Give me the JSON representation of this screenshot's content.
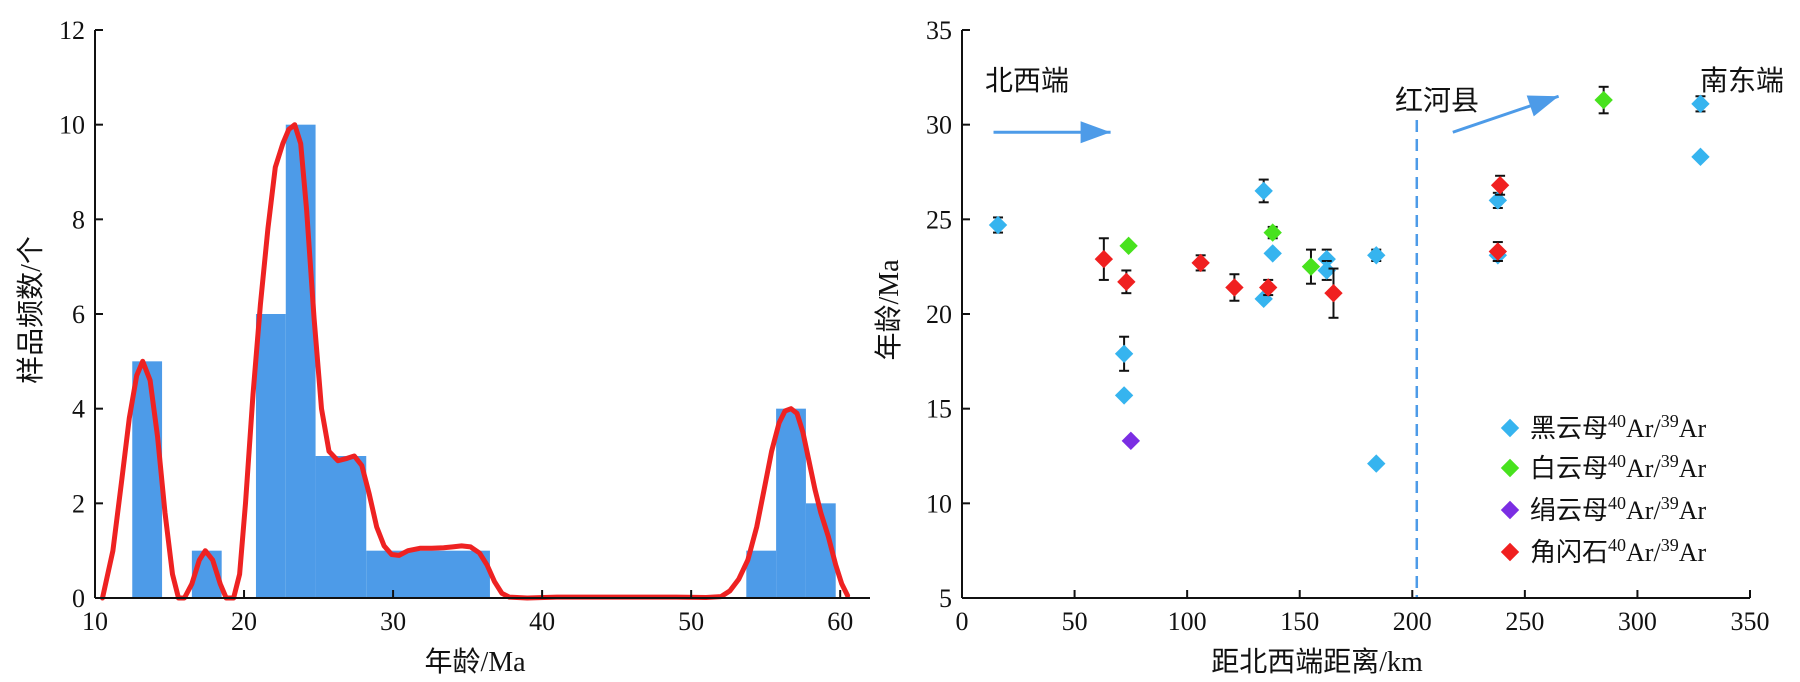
{
  "chart_data": [
    {
      "type": "bar",
      "xlabel": "年龄/Ma",
      "ylabel": "样品频数/个",
      "xlim": [
        10,
        62
      ],
      "ylim": [
        0,
        12
      ],
      "xticks": [
        10,
        20,
        30,
        40,
        50,
        60
      ],
      "yticks": [
        0,
        2,
        4,
        6,
        8,
        10,
        12
      ],
      "bar_color": "#4d9be8",
      "curve_color": "#ee2222",
      "bars": [
        {
          "x0": 12.5,
          "x1": 14.5,
          "value": 5
        },
        {
          "x0": 16.5,
          "x1": 18.5,
          "value": 1
        },
        {
          "x0": 20.8,
          "x1": 22.8,
          "value": 6
        },
        {
          "x0": 22.8,
          "x1": 24.8,
          "value": 10
        },
        {
          "x0": 24.8,
          "x1": 28.2,
          "value": 3
        },
        {
          "x0": 28.2,
          "x1": 36.5,
          "value": 1
        },
        {
          "x0": 53.7,
          "x1": 55.7,
          "value": 1
        },
        {
          "x0": 55.7,
          "x1": 57.7,
          "value": 4
        },
        {
          "x0": 57.7,
          "x1": 59.7,
          "value": 2
        }
      ],
      "curve": [
        [
          10.5,
          0
        ],
        [
          11.2,
          1
        ],
        [
          11.8,
          2.5
        ],
        [
          12.3,
          3.8
        ],
        [
          12.8,
          4.7
        ],
        [
          13.2,
          5
        ],
        [
          13.7,
          4.6
        ],
        [
          14.2,
          3.4
        ],
        [
          14.7,
          1.8
        ],
        [
          15.2,
          0.5
        ],
        [
          15.6,
          0
        ],
        [
          16,
          0
        ],
        [
          16.5,
          0.3
        ],
        [
          17,
          0.8
        ],
        [
          17.4,
          1
        ],
        [
          17.9,
          0.8
        ],
        [
          18.4,
          0.3
        ],
        [
          18.8,
          0
        ],
        [
          19.3,
          0
        ],
        [
          19.7,
          0.5
        ],
        [
          20.1,
          2
        ],
        [
          20.6,
          4.3
        ],
        [
          21.1,
          6.2
        ],
        [
          21.6,
          7.8
        ],
        [
          22.1,
          9.1
        ],
        [
          22.6,
          9.6
        ],
        [
          23,
          9.9
        ],
        [
          23.4,
          10
        ],
        [
          23.8,
          9.6
        ],
        [
          24.2,
          8.2
        ],
        [
          24.7,
          5.9
        ],
        [
          25.2,
          4
        ],
        [
          25.7,
          3.1
        ],
        [
          26.3,
          2.9
        ],
        [
          26.9,
          2.95
        ],
        [
          27.4,
          3
        ],
        [
          27.9,
          2.8
        ],
        [
          28.4,
          2.2
        ],
        [
          28.9,
          1.5
        ],
        [
          29.4,
          1.1
        ],
        [
          29.9,
          0.92
        ],
        [
          30.4,
          0.9
        ],
        [
          31,
          1
        ],
        [
          31.8,
          1.05
        ],
        [
          32.6,
          1.05
        ],
        [
          33.4,
          1.06
        ],
        [
          34,
          1.08
        ],
        [
          34.6,
          1.1
        ],
        [
          35.2,
          1.08
        ],
        [
          35.8,
          0.95
        ],
        [
          36.3,
          0.7
        ],
        [
          36.8,
          0.35
        ],
        [
          37.3,
          0.1
        ],
        [
          37.8,
          0.02
        ],
        [
          39,
          0
        ],
        [
          41,
          0.02
        ],
        [
          45,
          0.02
        ],
        [
          49,
          0.02
        ],
        [
          51,
          0.01
        ],
        [
          52,
          0.03
        ],
        [
          52.6,
          0.15
        ],
        [
          53.2,
          0.4
        ],
        [
          53.8,
          0.8
        ],
        [
          54.4,
          1.5
        ],
        [
          54.9,
          2.3
        ],
        [
          55.4,
          3.1
        ],
        [
          55.9,
          3.7
        ],
        [
          56.3,
          3.95
        ],
        [
          56.7,
          4
        ],
        [
          57.1,
          3.9
        ],
        [
          57.5,
          3.5
        ],
        [
          57.9,
          2.9
        ],
        [
          58.3,
          2.3
        ],
        [
          58.7,
          1.8
        ],
        [
          59.2,
          1.3
        ],
        [
          59.7,
          0.7
        ],
        [
          60.1,
          0.3
        ],
        [
          60.5,
          0.05
        ]
      ]
    },
    {
      "type": "scatter",
      "xlabel": "距北西端距离/km",
      "ylabel": "年龄/Ma",
      "xlim": [
        0,
        350
      ],
      "ylim": [
        5,
        35
      ],
      "xticks": [
        0,
        50,
        100,
        150,
        200,
        250,
        300,
        350
      ],
      "yticks": [
        5,
        10,
        15,
        20,
        25,
        30,
        35
      ],
      "annotations": {
        "nw": "北西端",
        "county": "红河县",
        "se": "南东端"
      },
      "dashed_line_x": 202,
      "arrows": [
        {
          "from": [
            14,
            29.6
          ],
          "to": [
            66,
            29.6
          ]
        },
        {
          "from": [
            218,
            29.6
          ],
          "to": [
            265,
            31.5
          ]
        }
      ],
      "legend_position": "bottom-right",
      "series": [
        {
          "name": "黑云母40Ar/39Ar",
          "label": {
            "mineral": "黑云母",
            "a": "40",
            "b": "Ar/",
            "c": "39",
            "d": "Ar"
          },
          "color": "#36b4ef",
          "points": [
            [
              16,
              24.7,
              0.4
            ],
            [
              72,
              17.9,
              0.9
            ],
            [
              72,
              15.7,
              0
            ],
            [
              134,
              26.5,
              0.6
            ],
            [
              134,
              20.8,
              0
            ],
            [
              138,
              23.2,
              0
            ],
            [
              162,
              22.9,
              0.5
            ],
            [
              162,
              22.3,
              0.5
            ],
            [
              184,
              23.1,
              0.3
            ],
            [
              184,
              12.1,
              0
            ],
            [
              238,
              26,
              0.4
            ],
            [
              238,
              23.1,
              0.3
            ],
            [
              328,
              31.1,
              0.4
            ],
            [
              328,
              28.3,
              0
            ]
          ]
        },
        {
          "name": "白云母40Ar/39Ar",
          "label": {
            "mineral": "白云母",
            "a": "40",
            "b": "Ar/",
            "c": "39",
            "d": "Ar"
          },
          "color": "#48e21e",
          "points": [
            [
              74,
              23.6,
              0
            ],
            [
              138,
              24.3,
              0.3
            ],
            [
              155,
              22.5,
              0.9
            ],
            [
              285,
              31.3,
              0.7
            ]
          ]
        },
        {
          "name": "绢云母40Ar/39Ar",
          "label": {
            "mineral": "绢云母",
            "a": "40",
            "b": "Ar/",
            "c": "39",
            "d": "Ar"
          },
          "color": "#7b2ee3",
          "points": [
            [
              75,
              13.3,
              0
            ]
          ]
        },
        {
          "name": "角闪石40Ar/39Ar",
          "label": {
            "mineral": "角闪石",
            "a": "40",
            "b": "Ar/",
            "c": "39",
            "d": "Ar"
          },
          "color": "#f02020",
          "points": [
            [
              63,
              22.9,
              1.1
            ],
            [
              73,
              21.7,
              0.6
            ],
            [
              106,
              22.7,
              0.4
            ],
            [
              121,
              21.4,
              0.7
            ],
            [
              136,
              21.4,
              0.4
            ],
            [
              165,
              21.1,
              1.3
            ],
            [
              239,
              26.8,
              0.5
            ],
            [
              238,
              23.3,
              0.5
            ]
          ]
        }
      ]
    }
  ]
}
